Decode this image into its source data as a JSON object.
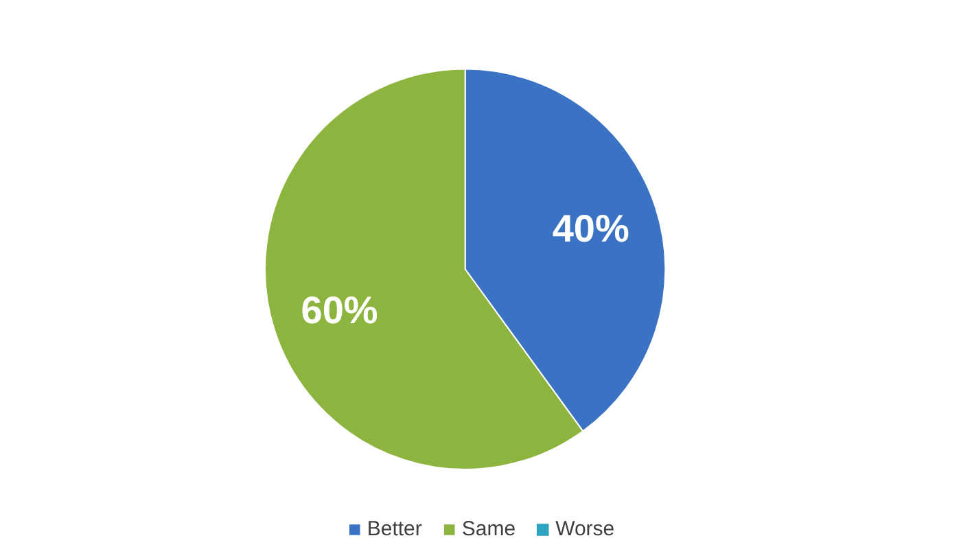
{
  "chart_data": {
    "type": "pie",
    "categories": [
      "Better",
      "Same",
      "Worse"
    ],
    "values": [
      40,
      60,
      0
    ],
    "colors": [
      "#3b73c4",
      "#8db43e",
      "#2ea3c2"
    ],
    "value_labels": [
      "40%",
      "60%",
      null
    ],
    "legend": "bottom"
  }
}
